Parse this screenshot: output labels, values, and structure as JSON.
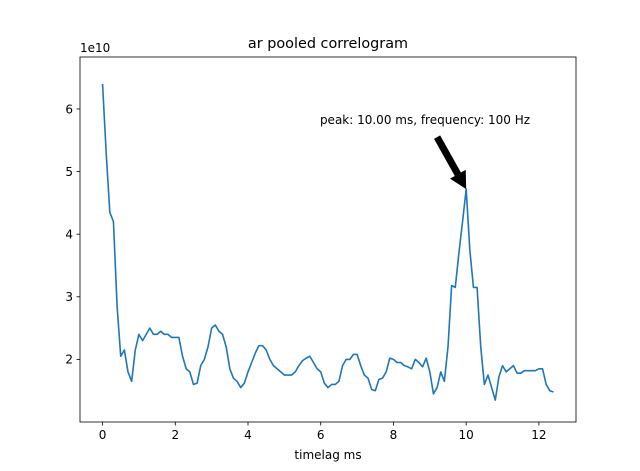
{
  "chart_data": {
    "type": "line",
    "title": "ar pooled correlogram",
    "xlabel": "timelag ms",
    "ylabel": "",
    "y_multiplier_label": "1e10",
    "xlim": [
      -0.62,
      13.02
    ],
    "ylim": [
      1.0,
      6.83
    ],
    "y_unit_scale": 10000000000,
    "xticks": [
      0,
      2,
      4,
      6,
      8,
      10,
      12
    ],
    "yticks": [
      2,
      3,
      4,
      5,
      6
    ],
    "grid": false,
    "line_color": "#1f77b4",
    "annotation": {
      "text": "peak: 10.00 ms, frequency: 100 Hz",
      "xy": [
        10.0,
        4.72
      ],
      "xytext": [
        9.2,
        5.55
      ]
    },
    "series": [
      {
        "x": [
          0.0,
          0.1,
          0.2,
          0.3,
          0.4,
          0.5,
          0.6,
          0.7,
          0.8,
          0.9,
          1.0,
          1.1,
          1.2,
          1.3,
          1.4,
          1.5,
          1.6,
          1.7,
          1.8,
          1.9,
          2.0,
          2.1,
          2.2,
          2.3,
          2.4,
          2.5,
          2.6,
          2.7,
          2.8,
          2.9,
          3.0,
          3.1,
          3.2,
          3.3,
          3.4,
          3.5,
          3.6,
          3.7,
          3.8,
          3.9,
          4.0,
          4.1,
          4.2,
          4.3,
          4.4,
          4.5,
          4.6,
          4.7,
          4.8,
          4.9,
          5.0,
          5.1,
          5.2,
          5.3,
          5.4,
          5.5,
          5.6,
          5.7,
          5.8,
          5.9,
          6.0,
          6.1,
          6.2,
          6.3,
          6.4,
          6.5,
          6.6,
          6.7,
          6.8,
          6.9,
          7.0,
          7.1,
          7.2,
          7.3,
          7.4,
          7.5,
          7.6,
          7.7,
          7.8,
          7.9,
          8.0,
          8.1,
          8.2,
          8.3,
          8.4,
          8.5,
          8.6,
          8.7,
          8.8,
          8.9,
          9.0,
          9.1,
          9.2,
          9.3,
          9.4,
          9.5,
          9.6,
          9.7,
          9.8,
          9.9,
          10.0,
          10.1,
          10.2,
          10.3,
          10.4,
          10.5,
          10.6,
          10.7,
          10.8,
          10.9,
          11.0,
          11.1,
          11.2,
          11.3,
          11.4,
          11.5,
          11.6,
          11.7,
          11.8,
          11.9,
          12.0,
          12.1,
          12.2,
          12.3,
          12.4
        ],
        "values": [
          6.4,
          5.3,
          4.35,
          4.2,
          2.85,
          2.05,
          2.15,
          1.8,
          1.65,
          2.15,
          2.4,
          2.3,
          2.4,
          2.5,
          2.4,
          2.4,
          2.45,
          2.4,
          2.4,
          2.35,
          2.35,
          2.35,
          2.05,
          1.85,
          1.8,
          1.6,
          1.62,
          1.9,
          2.0,
          2.2,
          2.5,
          2.55,
          2.45,
          2.4,
          2.2,
          1.85,
          1.7,
          1.65,
          1.55,
          1.62,
          1.8,
          1.95,
          2.1,
          2.22,
          2.22,
          2.15,
          2.0,
          1.9,
          1.85,
          1.8,
          1.75,
          1.75,
          1.75,
          1.8,
          1.9,
          1.98,
          2.02,
          2.05,
          1.95,
          1.85,
          1.8,
          1.62,
          1.55,
          1.6,
          1.6,
          1.65,
          1.9,
          2.0,
          2.0,
          2.08,
          2.08,
          1.9,
          1.75,
          1.7,
          1.52,
          1.5,
          1.68,
          1.7,
          1.8,
          2.02,
          2.0,
          1.95,
          1.95,
          1.9,
          1.88,
          1.85,
          2.0,
          1.95,
          1.88,
          2.02,
          1.8,
          1.45,
          1.55,
          1.8,
          1.65,
          2.2,
          3.18,
          3.15,
          3.7,
          4.2,
          4.72,
          3.75,
          3.15,
          3.15,
          2.2,
          1.6,
          1.75,
          1.55,
          1.35,
          1.72,
          1.9,
          1.8,
          1.85,
          1.9,
          1.78,
          1.78,
          1.82,
          1.82,
          1.82,
          1.82,
          1.85,
          1.85,
          1.6,
          1.5,
          1.48
        ]
      }
    ]
  }
}
